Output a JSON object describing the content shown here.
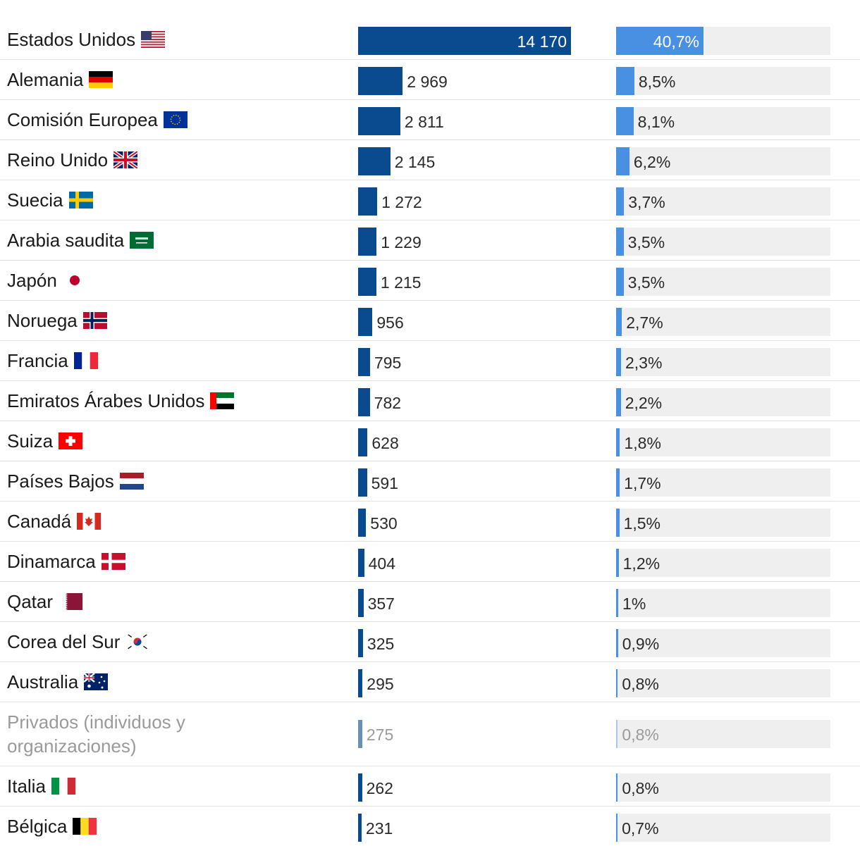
{
  "chart_data": {
    "type": "bar",
    "categories": [
      "Estados Unidos",
      "Alemania",
      "Comisión Europea",
      "Reino Unido",
      "Suecia",
      "Arabia saudita",
      "Japón",
      "Noruega",
      "Francia",
      "Emiratos Árabes Unidos",
      "Suiza",
      "Países Bajos",
      "Canadá",
      "Dinamarca",
      "Qatar",
      "Corea del Sur",
      "Australia",
      "Privados (individuos y organizaciones)",
      "Italia",
      "Bélgica"
    ],
    "value_labels": [
      "14 170",
      "2 969",
      "2 811",
      "2 145",
      "1 272",
      "1 229",
      "1 215",
      "956",
      "795",
      "782",
      "628",
      "591",
      "530",
      "404",
      "357",
      "325",
      "295",
      "275",
      "262",
      "231"
    ],
    "values": [
      14170,
      2969,
      2811,
      2145,
      1272,
      1229,
      1215,
      956,
      795,
      782,
      628,
      591,
      530,
      404,
      357,
      325,
      295,
      275,
      262,
      231
    ],
    "percent_labels": [
      "40,7%",
      "8,5%",
      "8,1%",
      "6,2%",
      "3,7%",
      "3,5%",
      "3,5%",
      "2,7%",
      "2,3%",
      "2,2%",
      "1,8%",
      "1,7%",
      "1,5%",
      "1,2%",
      "1%",
      "0,9%",
      "0,8%",
      "0,8%",
      "0,8%",
      "0,7%"
    ],
    "percents": [
      40.7,
      8.5,
      8.1,
      6.2,
      3.7,
      3.5,
      3.5,
      2.7,
      2.3,
      2.2,
      1.8,
      1.7,
      1.5,
      1.2,
      1.0,
      0.9,
      0.8,
      0.8,
      0.8,
      0.7
    ],
    "flags": [
      "us-flag",
      "de-flag",
      "eu-flag",
      "uk-flag",
      "se-flag",
      "sa-flag",
      "jp-flag",
      "no-flag",
      "fr-flag",
      "ae-flag",
      "ch-flag",
      "nl-flag",
      "ca-flag",
      "dk-flag",
      "qa-flag",
      "kr-flag",
      "au-flag",
      "",
      "it-flag",
      "be-flag"
    ],
    "highlighted_muted": [
      17
    ],
    "value_max": 14170,
    "percent_max": 100,
    "colors": {
      "value_bar": "#0a4a8e",
      "percent_bar": "#4a90e2",
      "track": "#efefef",
      "muted_text": "#9a9a9a"
    }
  }
}
